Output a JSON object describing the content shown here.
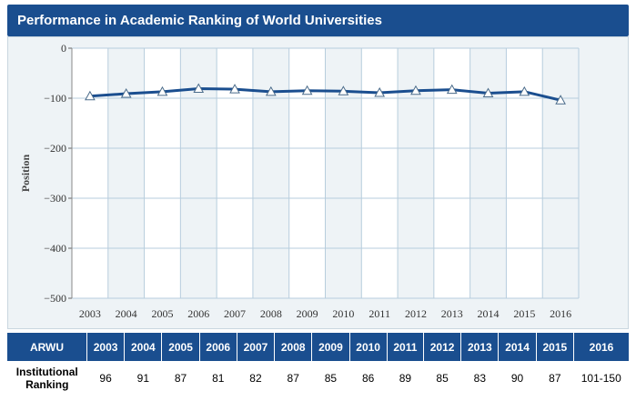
{
  "header": {
    "title": "Performance in Academic Ranking of World Universities"
  },
  "chart_data": {
    "type": "line",
    "x": [
      "2003",
      "2004",
      "2005",
      "2006",
      "2007",
      "2008",
      "2009",
      "2010",
      "2011",
      "2012",
      "2013",
      "2014",
      "2015",
      "2016"
    ],
    "series": [
      {
        "values": [
          -96,
          -91,
          -87,
          -81,
          -82,
          -87,
          -85,
          -86,
          -89,
          -85,
          -83,
          -90,
          -87,
          -104
        ]
      }
    ],
    "ylabel": "Position",
    "xlabel": "",
    "ylim": [
      -500,
      0
    ],
    "yticks": [
      0,
      -100,
      -200,
      -300,
      -400,
      -500
    ],
    "grid": true,
    "line_color": "#1a4e8f",
    "marker": "triangle"
  },
  "table": {
    "row_header_top": "ARWU",
    "row_header_bottom": "Institutional Ranking",
    "years": [
      "2003",
      "2004",
      "2005",
      "2006",
      "2007",
      "2008",
      "2009",
      "2010",
      "2011",
      "2012",
      "2013",
      "2014",
      "2015",
      "2016"
    ],
    "rankings": [
      "96",
      "91",
      "87",
      "81",
      "82",
      "87",
      "85",
      "86",
      "89",
      "85",
      "83",
      "90",
      "87",
      "101-150"
    ]
  },
  "colors": {
    "brand": "#1a4e8f",
    "plot_band": "#eef3f6",
    "grid": "#b7cddd"
  }
}
